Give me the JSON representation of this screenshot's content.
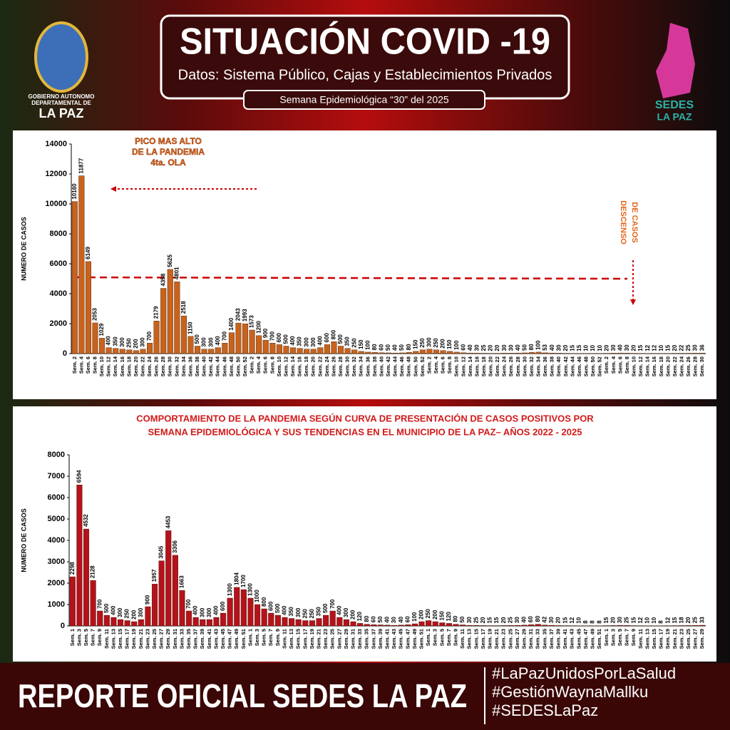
{
  "header": {
    "title": "SITUACIÓN COVID -19",
    "subtitle": "Datos: Sistema Público, Cajas y Establecimientos Privados",
    "week": "Semana  Epidemiológica “30” del  2025"
  },
  "logos": {
    "left": [
      "GOBIERNO AUTONOMO",
      "DEPARTAMENTAL DE",
      "LA PAZ"
    ],
    "right": [
      "SEDES",
      "LA PAZ"
    ]
  },
  "footer": {
    "title": "REPORTE OFICIAL SEDES LA PAZ",
    "hashtags": [
      "#LaPazUnidosPorLaSalud",
      "#GestiónWaynaMallku",
      "#SEDESLaPaz"
    ]
  },
  "chart_data": [
    {
      "type": "bar",
      "ylabel": "NUMERO DE CASOS",
      "color": "#c8621c",
      "annotations": [
        "PICO MAS ALTO",
        "DE LA PANDEMIA",
        "4ta.  OLA",
        "DESCENSO",
        "DE CASOS"
      ],
      "categories": [
        "Sem. 2",
        "Sem. 4",
        "Sem. 6",
        "Sem. 8",
        "Sem. 10",
        "Sem. 12",
        "Sem. 14",
        "Sem. 16",
        "Sem. 18",
        "Sem. 20",
        "Sem. 22",
        "Sem. 24",
        "Sem. 26",
        "Sem. 28",
        "Sem. 30",
        "Sem. 32",
        "Sem. 34",
        "Sem. 36",
        "Sem. 38",
        "Sem. 40",
        "Sem. 42",
        "Sem. 44",
        "Sem. 46",
        "Sem. 48",
        "Sem. 50",
        "Sem. 52",
        "Sem. 2",
        "Sem. 4",
        "Sem. 6",
        "Sem. 8",
        "Sem. 10",
        "Sem. 12",
        "Sem. 14",
        "Sem. 16",
        "Sem. 18",
        "Sem. 20",
        "Sem. 22",
        "Sem. 24",
        "Sem. 26",
        "Sem. 28",
        "Sem. 30",
        "Sem. 32",
        "Sem. 34",
        "Sem. 36",
        "Sem. 38",
        "Sem. 40",
        "Sem. 42",
        "Sem. 44",
        "Sem. 46",
        "Sem. 48",
        "Sem. 50",
        "Sem. 52",
        "Sem. 2",
        "Sem. 4",
        "Sem. 6",
        "Sem. 8",
        "Sem. 10",
        "Sem. 12",
        "Sem. 14",
        "Sem. 16",
        "Sem. 18",
        "Sem. 20",
        "Sem. 22",
        "Sem. 24",
        "Sem. 26",
        "Sem. 28",
        "Sem. 30",
        "Sem. 32",
        "Sem. 34",
        "Sem. 36",
        "Sem. 38",
        "Sem. 40",
        "Sem. 42",
        "Sem. 44",
        "Sem. 46",
        "Sem. 48",
        "Sem. 50",
        "Sem. 52",
        "Sem. 2",
        "Sem. 4",
        "Sem. 6",
        "Sem. 8",
        "Sem. 10",
        "Sem. 12",
        "Sem. 14",
        "Sem. 16",
        "Sem. 18",
        "Sem. 20",
        "Sem. 22",
        "Sem. 24",
        "Sem. 26",
        "Sem. 28",
        "Sem. 30"
      ],
      "values": [
        10160,
        11877,
        6149,
        2053,
        1029,
        400,
        350,
        300,
        250,
        200,
        300,
        700,
        2179,
        4358,
        5625,
        4801,
        2518,
        1150,
        500,
        300,
        300,
        400,
        700,
        1400,
        2043,
        1993,
        1573,
        1200,
        900,
        700,
        600,
        500,
        400,
        350,
        300,
        300,
        400,
        600,
        800,
        500,
        350,
        250,
        150,
        100,
        80,
        60,
        50,
        40,
        50,
        80,
        150,
        250,
        300,
        250,
        200,
        150,
        100,
        60,
        40,
        30,
        25,
        20,
        20,
        30,
        30,
        40,
        50,
        80,
        100,
        53,
        40,
        30,
        20,
        15,
        15,
        10,
        10,
        10,
        20,
        30,
        40,
        30,
        20,
        15,
        12,
        12,
        10,
        15,
        20,
        22,
        25,
        30,
        36
      ],
      "ylim": [
        0,
        14000
      ],
      "yticks": [
        0,
        2000,
        4000,
        6000,
        8000,
        10000,
        12000,
        14000
      ]
    },
    {
      "type": "bar",
      "title_lines": [
        "COMPORTAMIENTO DE LA PANDEMIA SEGÚN CURVA DE PRESENTACIÓN DE CASOS POSITIVOS POR",
        "SEMANA EPIDEMIOLÓGICA Y SUS TENDENCIAS EN EL MUNICIPIO DE LA PAZ– AÑOS 2022 - 2025"
      ],
      "ylabel": "NUMERO DE CASOS",
      "color": "#b5121b",
      "categories": [
        "Sem. 1",
        "Sem. 3",
        "Sem. 5",
        "Sem. 7",
        "Sem. 9",
        "Sem. 11",
        "Sem. 13",
        "Sem. 15",
        "Sem. 17",
        "Sem. 19",
        "Sem. 21",
        "Sem. 23",
        "Sem. 25",
        "Sem. 27",
        "Sem. 29",
        "Sem. 31",
        "Sem. 33",
        "Sem. 35",
        "Sem. 37",
        "Sem. 39",
        "Sem. 41",
        "Sem. 43",
        "Sem. 45",
        "Sem. 47",
        "Sem. 49",
        "Sem. 51",
        "Sem. 1",
        "Sem. 3",
        "Sem. 5",
        "Sem. 7",
        "Sem. 9",
        "Sem. 11",
        "Sem. 13",
        "Sem. 15",
        "Sem. 17",
        "Sem. 19",
        "Sem. 21",
        "Sem. 23",
        "Sem. 25",
        "Sem. 27",
        "Sem. 29",
        "Sem. 31",
        "Sem. 33",
        "Sem. 35",
        "Sem. 37",
        "Sem. 39",
        "Sem. 41",
        "Sem. 43",
        "Sem. 45",
        "Sem. 47",
        "Sem. 49",
        "Sem. 51",
        "Sem. 1",
        "Sem. 3",
        "Sem. 5",
        "Sem. 7",
        "Sem. 9",
        "Sem. 11",
        "Sem. 13",
        "Sem. 15",
        "Sem. 17",
        "Sem. 19",
        "Sem. 21",
        "Sem. 23",
        "Sem. 25",
        "Sem. 27",
        "Sem. 29",
        "Sem. 31",
        "Sem. 33",
        "Sem. 35",
        "Sem. 37",
        "Sem. 39",
        "Sem. 41",
        "Sem. 43",
        "Sem. 45",
        "Sem. 47",
        "Sem. 49",
        "Sem. 51",
        "Sem. 1",
        "Sem. 3",
        "Sem. 5",
        "Sem. 7",
        "Sem. 9",
        "Sem. 11",
        "Sem. 13",
        "Sem. 15",
        "Sem. 17",
        "Sem. 19",
        "Sem. 21",
        "Sem. 23",
        "Sem. 25",
        "Sem. 27",
        "Sem. 29"
      ],
      "values": [
        2298,
        6594,
        4532,
        2128,
        700,
        500,
        400,
        300,
        250,
        200,
        300,
        900,
        1957,
        3045,
        4453,
        3306,
        1663,
        700,
        400,
        300,
        300,
        400,
        600,
        1300,
        1804,
        1700,
        1300,
        1000,
        800,
        600,
        500,
        400,
        350,
        300,
        250,
        250,
        350,
        500,
        700,
        400,
        300,
        200,
        120,
        80,
        60,
        50,
        40,
        30,
        40,
        60,
        100,
        200,
        250,
        200,
        150,
        120,
        80,
        50,
        30,
        25,
        20,
        15,
        15,
        20,
        25,
        30,
        40,
        60,
        80,
        42,
        30,
        20,
        15,
        12,
        10,
        8,
        8,
        8,
        15,
        20,
        30,
        25,
        15,
        12,
        10,
        10,
        8,
        12,
        15,
        18,
        20,
        25,
        33
      ],
      "ylim": [
        0,
        8000
      ],
      "yticks": [
        0,
        1000,
        2000,
        3000,
        4000,
        5000,
        6000,
        7000,
        8000
      ]
    }
  ]
}
